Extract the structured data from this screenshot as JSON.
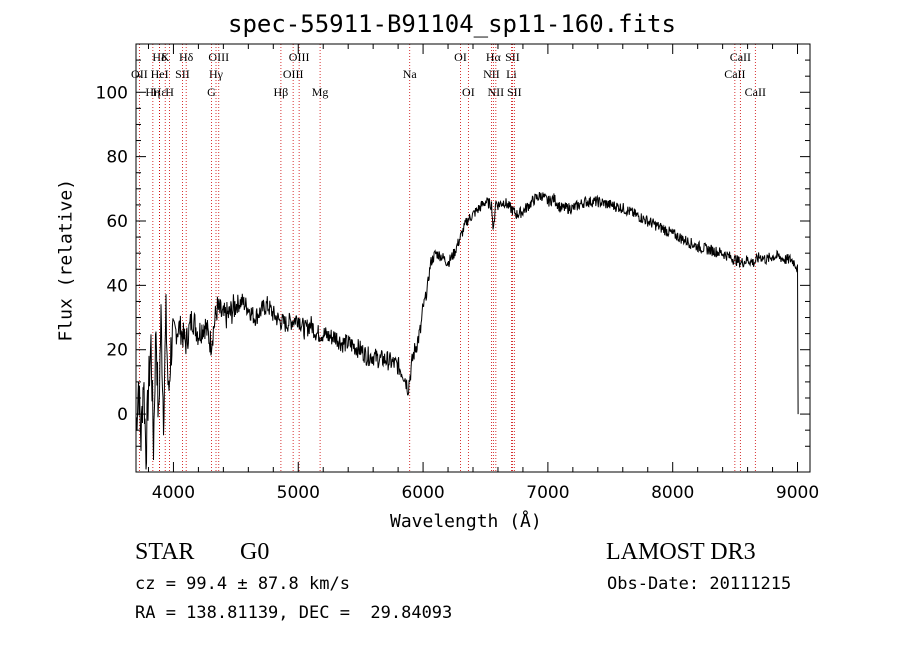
{
  "chart_data": {
    "type": "line",
    "title": "spec-55911-B91104_sp11-160.fits",
    "xlabel": "Wavelength (Å)",
    "ylabel": "Flux (relative)",
    "xlim": [
      3700,
      9100
    ],
    "ylim": [
      -18,
      115
    ],
    "xticks": [
      4000,
      5000,
      6000,
      7000,
      8000,
      9000
    ],
    "yticks": [
      0,
      20,
      40,
      60,
      80,
      100
    ],
    "grid": false,
    "line_color": "#000000",
    "marker_color": "#cc0000",
    "series": [
      {
        "x": [
          3700,
          3720,
          3740,
          3760,
          3780,
          3800,
          3820,
          3840,
          3860,
          3880,
          3900,
          3920,
          3940,
          3960,
          3980,
          4000,
          4050,
          4100,
          4150,
          4200,
          4250,
          4300,
          4350,
          4400,
          4450,
          4500,
          4550,
          4600,
          4650,
          4700,
          4750,
          4800,
          4850,
          4900,
          4950,
          5000,
          5050,
          5100,
          5150,
          5200,
          5250,
          5300,
          5350,
          5400,
          5450,
          5500,
          5550,
          5600,
          5650,
          5700,
          5750,
          5800,
          5850,
          5880,
          5900,
          5920,
          5950,
          5980,
          6000,
          6030,
          6060,
          6100,
          6150,
          6200,
          6250,
          6300,
          6350,
          6400,
          6450,
          6500,
          6550,
          6563,
          6580,
          6600,
          6650,
          6700,
          6750,
          6800,
          6850,
          6900,
          6950,
          7000,
          7050,
          7100,
          7150,
          7200,
          7300,
          7400,
          7500,
          7600,
          7700,
          7800,
          7900,
          8000,
          8100,
          8200,
          8300,
          8400,
          8500,
          8550,
          8600,
          8650,
          8700,
          8750,
          8800,
          8850,
          8900,
          8950,
          8980,
          9000,
          9010
        ],
        "y": [
          -5,
          10,
          -8,
          12,
          -12,
          8,
          22,
          -10,
          28,
          -3,
          30,
          0,
          30,
          5,
          20,
          25,
          27,
          22,
          30,
          25,
          28,
          22,
          33,
          30,
          31,
          34,
          35,
          33,
          30,
          32,
          34,
          31,
          29,
          28,
          29,
          30,
          26,
          28,
          25,
          25,
          24,
          24,
          22,
          22,
          21,
          20,
          18,
          18,
          17,
          17,
          16,
          15,
          12,
          8,
          13,
          18,
          22,
          26,
          33,
          38,
          47,
          50,
          49,
          47,
          50,
          55,
          60,
          62,
          64,
          66,
          65,
          56,
          66,
          65,
          66,
          64,
          62,
          63,
          65,
          67,
          68,
          66,
          67,
          64,
          64,
          64,
          66,
          66,
          65,
          64,
          62,
          60,
          58,
          56,
          54,
          52,
          51,
          50,
          48,
          47,
          48,
          47,
          49,
          48,
          49,
          49,
          48,
          48,
          47,
          45,
          0
        ]
      }
    ],
    "spectral_lines": [
      {
        "name": "Hδ",
        "x": 3889,
        "row": 0
      },
      {
        "name": "OII",
        "x": 3727,
        "row": 1
      },
      {
        "name": "Hη",
        "x": 3835,
        "row": 2
      },
      {
        "name": "Hε",
        "x": 3889,
        "row": 2
      },
      {
        "name": "K",
        "x": 3934,
        "row": 0
      },
      {
        "name": "HeI",
        "x": 3889,
        "row": 1
      },
      {
        "name": "SII",
        "x": 4072,
        "row": 1
      },
      {
        "name": "H",
        "x": 3969,
        "row": 2
      },
      {
        "name": "Hδ",
        "x": 4102,
        "row": 0
      },
      {
        "name": "OIII",
        "x": 4363,
        "row": 0
      },
      {
        "name": "Hγ",
        "x": 4341,
        "row": 1
      },
      {
        "name": "G",
        "x": 4305,
        "row": 2
      },
      {
        "name": "Hβ",
        "x": 4861,
        "row": 2
      },
      {
        "name": "OIII",
        "x": 5007,
        "row": 0
      },
      {
        "name": "OIII",
        "x": 4959,
        "row": 1
      },
      {
        "name": "Mg",
        "x": 5175,
        "row": 2
      },
      {
        "name": "Na",
        "x": 5893,
        "row": 1
      },
      {
        "name": "OI",
        "x": 6300,
        "row": 0
      },
      {
        "name": "OI",
        "x": 6363,
        "row": 2
      },
      {
        "name": "Hα",
        "x": 6563,
        "row": 0
      },
      {
        "name": "NII",
        "x": 6548,
        "row": 1
      },
      {
        "name": "NII",
        "x": 6583,
        "row": 2
      },
      {
        "name": "SII",
        "x": 6716,
        "row": 0
      },
      {
        "name": "Li",
        "x": 6708,
        "row": 1
      },
      {
        "name": "SII",
        "x": 6731,
        "row": 2
      },
      {
        "name": "CaII",
        "x": 8542,
        "row": 0
      },
      {
        "name": "CaII",
        "x": 8498,
        "row": 1
      },
      {
        "name": "CaII",
        "x": 8662,
        "row": 2
      }
    ]
  },
  "info": {
    "object_type": "STAR",
    "subclass": "G0",
    "survey": "LAMOST DR3",
    "cz_line": "cz = 99.4 ± 87.8 km/s",
    "obs_date": "Obs-Date: 20111215",
    "radec_line": "RA = 138.81139, DEC =  29.84093"
  }
}
